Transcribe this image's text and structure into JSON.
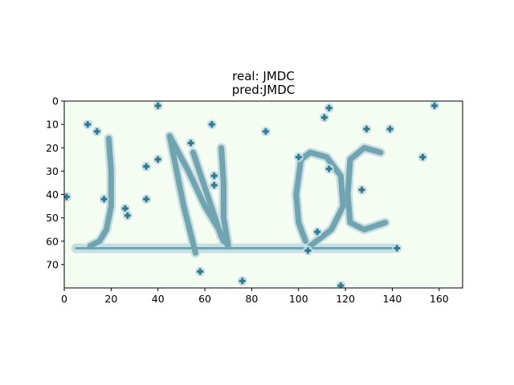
{
  "chart_data": {
    "type": "image",
    "title_lines": [
      "real: JMDC",
      "pred:JMDC"
    ],
    "xlabel": "",
    "ylabel": "",
    "xlim": [
      0,
      170
    ],
    "ylim": [
      80,
      0
    ],
    "xticks": [
      0,
      20,
      40,
      60,
      80,
      100,
      120,
      140,
      160
    ],
    "yticks": [
      0,
      10,
      20,
      30,
      40,
      50,
      60,
      70
    ],
    "grid": false,
    "colors": {
      "background": "#f5fdf2",
      "stroke": "#6fa4b0",
      "stroke_halo": "#c7dfe0",
      "noise": "#2c7b95"
    },
    "captcha": {
      "strokes": [
        [
          [
            19,
            16
          ],
          [
            20,
            30
          ],
          [
            20,
            45
          ],
          [
            18,
            55
          ],
          [
            15,
            60
          ],
          [
            11,
            62
          ]
        ],
        [
          [
            45,
            15
          ],
          [
            48,
            30
          ],
          [
            51,
            45
          ],
          [
            54,
            57
          ],
          [
            56,
            65
          ]
        ],
        [
          [
            45,
            15
          ],
          [
            53,
            30
          ],
          [
            60,
            45
          ],
          [
            66,
            55
          ],
          [
            68,
            60
          ]
        ],
        [
          [
            55,
            22
          ],
          [
            61,
            40
          ],
          [
            67,
            58
          ],
          [
            70,
            62
          ]
        ],
        [
          [
            67,
            20
          ],
          [
            68,
            35
          ],
          [
            68,
            50
          ],
          [
            70,
            62
          ]
        ],
        [
          [
            5,
            63
          ],
          [
            140,
            63
          ]
        ],
        [
          [
            103,
            60
          ],
          [
            100,
            52
          ],
          [
            99,
            40
          ],
          [
            101,
            25
          ],
          [
            105,
            22
          ],
          [
            112,
            24
          ],
          [
            118,
            32
          ],
          [
            119,
            45
          ],
          [
            114,
            55
          ],
          [
            105,
            62
          ]
        ],
        [
          [
            135,
            22
          ],
          [
            128,
            20
          ],
          [
            122,
            25
          ],
          [
            121,
            40
          ],
          [
            122,
            52
          ],
          [
            128,
            55
          ],
          [
            137,
            52
          ]
        ]
      ],
      "noise_points": [
        [
          10,
          10
        ],
        [
          14,
          13
        ],
        [
          17,
          42
        ],
        [
          26,
          46
        ],
        [
          27,
          49
        ],
        [
          35,
          28
        ],
        [
          40,
          25
        ],
        [
          35,
          42
        ],
        [
          40,
          2
        ],
        [
          54,
          18
        ],
        [
          63,
          10
        ],
        [
          64,
          32
        ],
        [
          64,
          36
        ],
        [
          58,
          73
        ],
        [
          76,
          77
        ],
        [
          86,
          13
        ],
        [
          100,
          24
        ],
        [
          111,
          7
        ],
        [
          113,
          3
        ],
        [
          113,
          29
        ],
        [
          108,
          56
        ],
        [
          104,
          64
        ],
        [
          127,
          38
        ],
        [
          129,
          12
        ],
        [
          139,
          12
        ],
        [
          142,
          63
        ],
        [
          153,
          24
        ],
        [
          158,
          2
        ],
        [
          118,
          79
        ],
        [
          1,
          41
        ]
      ]
    }
  }
}
